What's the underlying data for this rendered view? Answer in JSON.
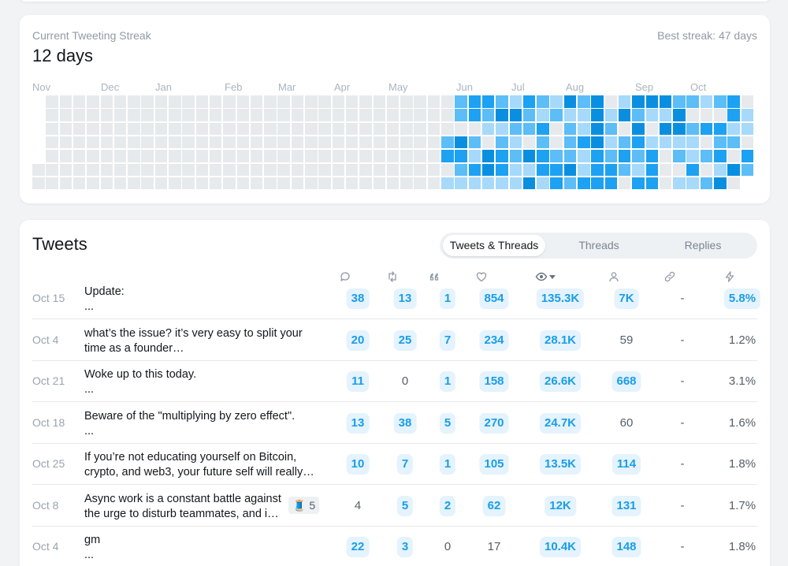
{
  "streak": {
    "label": "Current Tweeting Streak",
    "value": "12 days",
    "best": "Best streak: 47 days",
    "months": [
      "Nov",
      "Dec",
      "Jan",
      "Feb",
      "Mar",
      "Apr",
      "May",
      "Jun",
      "Jul",
      "Aug",
      "Sep",
      "Oct"
    ],
    "colors": [
      "#e7eaed",
      "#a6d9fa",
      "#5cbdf7",
      "#1da1f2",
      "#0a8fe0"
    ]
  },
  "tweets": {
    "title": "Tweets",
    "tabs": [
      {
        "label": "Tweets & Threads",
        "active": true
      },
      {
        "label": "Threads",
        "active": false
      },
      {
        "label": "Replies",
        "active": false
      }
    ],
    "columns": [
      "replies-icon",
      "retweets-icon",
      "quotes-icon",
      "likes-icon",
      "impressions-icon",
      "profile-visits-icon",
      "link-clicks-icon",
      "engagement-rate-icon"
    ],
    "rows": [
      {
        "date": "Oct 15",
        "line1": "Update:",
        "line2": "...",
        "thread": "",
        "replies": "38",
        "retweets": "13",
        "quotes": "1",
        "likes": "854",
        "impressions": "135.3K",
        "profile": "7K",
        "links": "-",
        "rate": "5.8%",
        "hl": [
          true,
          true,
          true,
          true,
          true,
          true,
          false,
          true
        ]
      },
      {
        "date": "Oct 4",
        "line1": "what’s the issue? it’s very easy to split your",
        "line2": "time as a founder…",
        "thread": "",
        "replies": "20",
        "retweets": "25",
        "quotes": "7",
        "likes": "234",
        "impressions": "28.1K",
        "profile": "59",
        "links": "-",
        "rate": "1.2%",
        "hl": [
          true,
          true,
          true,
          true,
          true,
          false,
          false,
          false
        ]
      },
      {
        "date": "Oct 21",
        "line1": "Woke up to this today.",
        "line2": "...",
        "thread": "",
        "replies": "11",
        "retweets": "0",
        "quotes": "1",
        "likes": "158",
        "impressions": "26.6K",
        "profile": "668",
        "links": "-",
        "rate": "3.1%",
        "hl": [
          true,
          false,
          true,
          true,
          true,
          true,
          false,
          false
        ]
      },
      {
        "date": "Oct 18",
        "line1": "Beware of the \"multiplying by zero effect\".",
        "line2": "...",
        "thread": "",
        "replies": "13",
        "retweets": "38",
        "quotes": "5",
        "likes": "270",
        "impressions": "24.7K",
        "profile": "60",
        "links": "-",
        "rate": "1.6%",
        "hl": [
          true,
          true,
          true,
          true,
          true,
          false,
          false,
          false
        ]
      },
      {
        "date": "Oct 25",
        "line1": "If you’re not educating yourself on Bitcoin,",
        "line2": "crypto, and web3, your future self will really…",
        "thread": "",
        "replies": "10",
        "retweets": "7",
        "quotes": "1",
        "likes": "105",
        "impressions": "13.5K",
        "profile": "114",
        "links": "-",
        "rate": "1.8%",
        "hl": [
          true,
          true,
          true,
          true,
          true,
          true,
          false,
          false
        ]
      },
      {
        "date": "Oct 8",
        "line1": "Async work is a constant battle against",
        "line2": "the urge to disturb teammates, and i…",
        "thread": "🧵 5",
        "replies": "4",
        "retweets": "5",
        "quotes": "2",
        "likes": "62",
        "impressions": "12K",
        "profile": "131",
        "links": "-",
        "rate": "1.7%",
        "hl": [
          false,
          true,
          true,
          true,
          true,
          true,
          false,
          false
        ]
      },
      {
        "date": "Oct 4",
        "line1": "gm",
        "line2": "...",
        "thread": "",
        "replies": "22",
        "retweets": "3",
        "quotes": "0",
        "likes": "17",
        "impressions": "10.4K",
        "profile": "148",
        "links": "-",
        "rate": "1.8%",
        "hl": [
          true,
          true,
          false,
          false,
          true,
          true,
          false,
          false
        ]
      }
    ]
  }
}
